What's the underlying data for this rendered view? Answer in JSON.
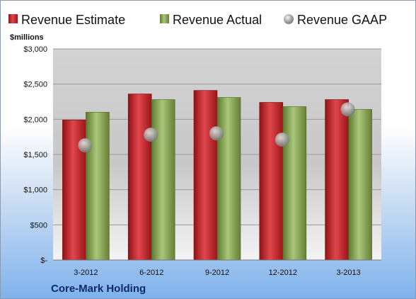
{
  "chart_data": {
    "type": "bar",
    "title": "",
    "unit_label": "$millions",
    "company": "Core-Mark Holding",
    "categories": [
      "3-2012",
      "6-2012",
      "9-2012",
      "12-2012",
      "3-2013"
    ],
    "y_ticks": [
      "$-",
      "$500",
      "$1,000",
      "$1,500",
      "$2,000",
      "$2,500",
      "$3,000"
    ],
    "ylim": [
      0,
      3000
    ],
    "grid": true,
    "legend_position": "top",
    "series": [
      {
        "name": "Revenue Estimate",
        "kind": "bar",
        "color": "#c8242b",
        "values": [
          1990,
          2360,
          2410,
          2240,
          2280
        ]
      },
      {
        "name": "Revenue Actual",
        "kind": "bar",
        "color": "#8aab55",
        "values": [
          2100,
          2280,
          2310,
          2180,
          2140
        ]
      },
      {
        "name": "Revenue GAAP",
        "kind": "marker",
        "color": "#b8b8b8",
        "values": [
          1630,
          1780,
          1800,
          1710,
          2140
        ]
      }
    ]
  }
}
